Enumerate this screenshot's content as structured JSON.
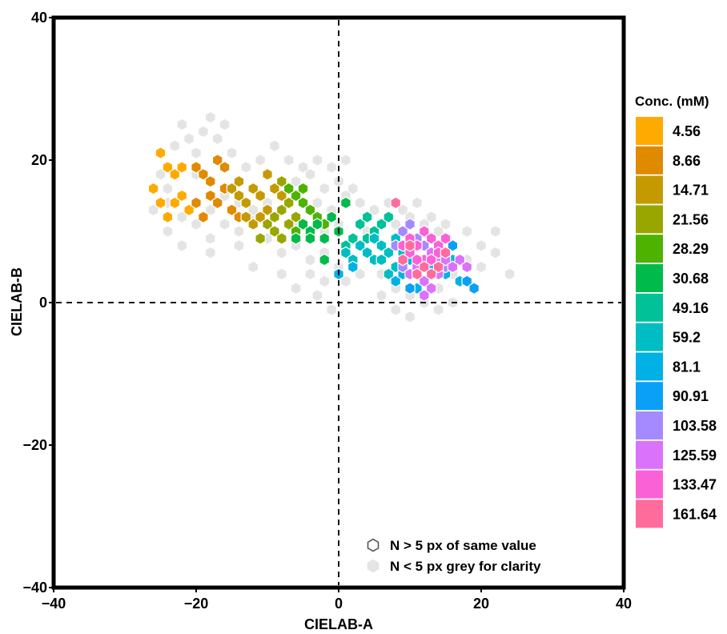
{
  "chart_data": {
    "type": "scatter",
    "xlabel": "CIELAB-A",
    "ylabel": "CIELAB-B",
    "xlim": [
      -40,
      40
    ],
    "ylim": [
      -40,
      40
    ],
    "xticks": [
      "−40",
      "−20",
      "0",
      "20",
      "40"
    ],
    "yticks": [
      "−40",
      "−20",
      "0",
      "20",
      "40"
    ],
    "reference_lines": {
      "x": 0,
      "y": 0,
      "style": "dashed"
    },
    "legend": {
      "title": "Conc. (mM)",
      "placement": "right",
      "entries": [
        {
          "label": "4.56",
          "color": "#FFAA00"
        },
        {
          "label": "8.66",
          "color": "#E08A00"
        },
        {
          "label": "14.71",
          "color": "#C59A00"
        },
        {
          "label": "21.56",
          "color": "#9AA600"
        },
        {
          "label": "28.29",
          "color": "#4DB300"
        },
        {
          "label": "30.68",
          "color": "#00BA4C"
        },
        {
          "label": "49.16",
          "color": "#00C197"
        },
        {
          "label": "59.2",
          "color": "#00BDC4"
        },
        {
          "label": "81.1",
          "color": "#00B1E6"
        },
        {
          "label": "90.91",
          "color": "#0AA0F7"
        },
        {
          "label": "103.58",
          "color": "#A58AFF"
        },
        {
          "label": "125.59",
          "color": "#DB72FB"
        },
        {
          "label": "133.47",
          "color": "#FB61D7"
        },
        {
          "label": "161.64",
          "color": "#FF6C9C"
        }
      ]
    },
    "annotations": [
      {
        "marker": "hex-outline",
        "text": "N > 5 px of same value"
      },
      {
        "marker": "hex-grey",
        "text": "N < 5 px grey for clarity"
      }
    ],
    "grey_color": "#E4E4E4",
    "grey_points": [
      [
        -25,
        18
      ],
      [
        -24,
        16
      ],
      [
        -23,
        22
      ],
      [
        -22,
        25
      ],
      [
        -21,
        23
      ],
      [
        -20,
        21
      ],
      [
        -19,
        24
      ],
      [
        -18,
        26
      ],
      [
        -17,
        23
      ],
      [
        -16,
        25
      ],
      [
        -24,
        10
      ],
      [
        -22,
        12
      ],
      [
        -20,
        11
      ],
      [
        -18,
        9
      ],
      [
        -16,
        11
      ],
      [
        -14,
        10
      ],
      [
        -12,
        12
      ],
      [
        -10,
        11
      ],
      [
        -22,
        8
      ],
      [
        -18,
        7
      ],
      [
        -14,
        8
      ],
      [
        -10,
        9
      ],
      [
        -8,
        7
      ],
      [
        -6,
        8
      ],
      [
        -4,
        6
      ],
      [
        -2,
        7
      ],
      [
        -15,
        21
      ],
      [
        -13,
        19
      ],
      [
        -11,
        20
      ],
      [
        -9,
        22
      ],
      [
        -7,
        20
      ],
      [
        -5,
        19
      ],
      [
        -3,
        20
      ],
      [
        -1,
        19
      ],
      [
        1,
        20
      ],
      [
        -6,
        17
      ],
      [
        -4,
        18
      ],
      [
        -2,
        16
      ],
      [
        0,
        17
      ],
      [
        2,
        16
      ],
      [
        -3,
        14
      ],
      [
        -1,
        13
      ],
      [
        1,
        15
      ],
      [
        3,
        14
      ],
      [
        5,
        13
      ],
      [
        7,
        14
      ],
      [
        9,
        13
      ],
      [
        11,
        14
      ],
      [
        13,
        12
      ],
      [
        15,
        11
      ],
      [
        -4,
        4
      ],
      [
        -2,
        3
      ],
      [
        0,
        5
      ],
      [
        -3,
        1
      ],
      [
        -1,
        -1
      ],
      [
        1,
        3
      ],
      [
        3,
        4
      ],
      [
        6,
        4
      ],
      [
        8,
        2
      ],
      [
        10,
        1
      ],
      [
        12,
        0
      ],
      [
        14,
        2
      ],
      [
        16,
        4
      ],
      [
        18,
        6
      ],
      [
        20,
        8
      ],
      [
        22,
        10
      ],
      [
        -2,
        10
      ],
      [
        0,
        11
      ],
      [
        2,
        9
      ],
      [
        4,
        10
      ],
      [
        6,
        8
      ],
      [
        8,
        11
      ],
      [
        10,
        12
      ],
      [
        12,
        11
      ],
      [
        14,
        10
      ],
      [
        16,
        8
      ],
      [
        18,
        10
      ],
      [
        20,
        5
      ],
      [
        22,
        7
      ],
      [
        24,
        4
      ],
      [
        6,
        1
      ],
      [
        8,
        -1
      ],
      [
        10,
        -2
      ],
      [
        12,
        0
      ],
      [
        14,
        -1
      ],
      [
        16,
        0
      ],
      [
        -12,
        5
      ],
      [
        -8,
        4
      ],
      [
        -6,
        2
      ],
      [
        -20,
        14
      ],
      [
        -18,
        13
      ],
      [
        -16,
        15
      ],
      [
        -14,
        14
      ],
      [
        -12,
        13
      ],
      [
        -10,
        14
      ],
      [
        -8,
        15
      ],
      [
        -26,
        13
      ],
      [
        -24,
        14
      ],
      [
        -20,
        18
      ],
      [
        -6,
        11
      ]
    ],
    "series": [
      {
        "name": "4.56",
        "points": [
          [
            -25,
            21
          ],
          [
            -24,
            19
          ],
          [
            -23,
            18
          ],
          [
            -22,
            19
          ],
          [
            -25,
            14
          ],
          [
            -24,
            12
          ],
          [
            -23,
            14
          ],
          [
            -22,
            15
          ],
          [
            -21,
            13
          ],
          [
            -26,
            16
          ]
        ]
      },
      {
        "name": "8.66",
        "points": [
          [
            -20,
            19
          ],
          [
            -19,
            18
          ],
          [
            -18,
            17
          ],
          [
            -17,
            20
          ],
          [
            -16,
            19
          ],
          [
            -18,
            15
          ],
          [
            -17,
            14
          ],
          [
            -15,
            13
          ],
          [
            -14,
            12
          ],
          [
            -19,
            12
          ],
          [
            -16,
            16
          ],
          [
            -20,
            14
          ]
        ]
      },
      {
        "name": "14.71",
        "points": [
          [
            -15,
            16
          ],
          [
            -14,
            15
          ],
          [
            -13,
            14
          ],
          [
            -12,
            16
          ],
          [
            -11,
            15
          ],
          [
            -10,
            13
          ],
          [
            -12,
            11
          ],
          [
            -11,
            12
          ],
          [
            -13,
            12
          ],
          [
            -9,
            16
          ],
          [
            -10,
            18
          ],
          [
            -8,
            15
          ],
          [
            -14,
            17
          ]
        ]
      },
      {
        "name": "21.56",
        "points": [
          [
            -10,
            11
          ],
          [
            -9,
            12
          ],
          [
            -8,
            13
          ],
          [
            -7,
            14
          ],
          [
            -9,
            10
          ],
          [
            -8,
            9
          ],
          [
            -6,
            12
          ],
          [
            -7,
            11
          ],
          [
            -11,
            9
          ],
          [
            -8,
            17
          ]
        ]
      },
      {
        "name": "28.29",
        "points": [
          [
            -6,
            15
          ],
          [
            -5,
            14
          ],
          [
            -4,
            13
          ],
          [
            -5,
            16
          ],
          [
            -3,
            12
          ],
          [
            -6,
            10
          ],
          [
            -2,
            11
          ],
          [
            -7,
            16
          ]
        ]
      },
      {
        "name": "30.68",
        "points": [
          [
            -5,
            11
          ],
          [
            -4,
            10
          ],
          [
            -3,
            11
          ],
          [
            -2,
            9
          ],
          [
            -4,
            9
          ],
          [
            -1,
            12
          ],
          [
            0,
            10
          ],
          [
            1,
            14
          ],
          [
            -2,
            6
          ],
          [
            -6,
            9
          ]
        ]
      },
      {
        "name": "49.16",
        "points": [
          [
            1,
            8
          ],
          [
            2,
            9
          ],
          [
            3,
            11
          ],
          [
            4,
            12
          ],
          [
            5,
            10
          ],
          [
            6,
            11
          ],
          [
            7,
            12
          ],
          [
            4,
            9
          ],
          [
            6,
            8
          ],
          [
            3,
            8
          ]
        ]
      },
      {
        "name": "59.2",
        "points": [
          [
            1,
            7
          ],
          [
            2,
            6
          ],
          [
            3,
            8
          ],
          [
            4,
            7
          ],
          [
            5,
            9
          ],
          [
            6,
            8
          ],
          [
            7,
            7
          ],
          [
            8,
            9
          ],
          [
            5,
            6
          ],
          [
            8,
            5
          ],
          [
            9,
            7
          ],
          [
            7,
            4
          ],
          [
            6,
            6
          ]
        ]
      },
      {
        "name": "81.1",
        "points": [
          [
            0,
            4
          ],
          [
            2,
            5
          ],
          [
            8,
            3
          ],
          [
            9,
            4
          ],
          [
            11,
            2
          ],
          [
            12,
            3
          ],
          [
            13,
            5
          ],
          [
            15,
            4
          ],
          [
            16,
            6
          ],
          [
            17,
            3
          ],
          [
            10,
            6
          ]
        ]
      },
      {
        "name": "90.91",
        "points": [
          [
            18,
            3
          ],
          [
            19,
            2
          ],
          [
            10,
            2
          ],
          [
            12,
            1
          ],
          [
            17,
            6
          ],
          [
            16,
            8
          ]
        ]
      },
      {
        "name": "103.58",
        "points": [
          [
            8,
            8
          ],
          [
            9,
            10
          ],
          [
            10,
            11
          ],
          [
            11,
            9
          ],
          [
            12,
            8
          ],
          [
            14,
            6
          ],
          [
            15,
            5
          ],
          [
            9,
            5
          ],
          [
            13,
            9
          ]
        ]
      },
      {
        "name": "125.59",
        "points": [
          [
            10,
            4
          ],
          [
            11,
            5
          ],
          [
            12,
            3
          ],
          [
            13,
            2
          ],
          [
            14,
            4
          ],
          [
            15,
            6
          ],
          [
            16,
            5
          ],
          [
            17,
            6
          ],
          [
            18,
            5
          ],
          [
            12,
            1
          ],
          [
            13,
            7
          ]
        ]
      },
      {
        "name": "133.47",
        "points": [
          [
            9,
            8
          ],
          [
            10,
            9
          ],
          [
            11,
            8
          ],
          [
            12,
            10
          ],
          [
            13,
            9
          ],
          [
            14,
            8
          ],
          [
            15,
            9
          ],
          [
            10,
            7
          ],
          [
            12,
            6
          ],
          [
            11,
            6
          ],
          [
            13,
            6
          ],
          [
            14,
            7
          ]
        ]
      },
      {
        "name": "161.64",
        "points": [
          [
            8,
            14
          ],
          [
            9,
            6
          ],
          [
            11,
            4
          ],
          [
            10,
            8
          ],
          [
            12,
            5
          ],
          [
            14,
            5
          ],
          [
            15,
            7
          ],
          [
            13,
            4
          ]
        ]
      }
    ]
  }
}
